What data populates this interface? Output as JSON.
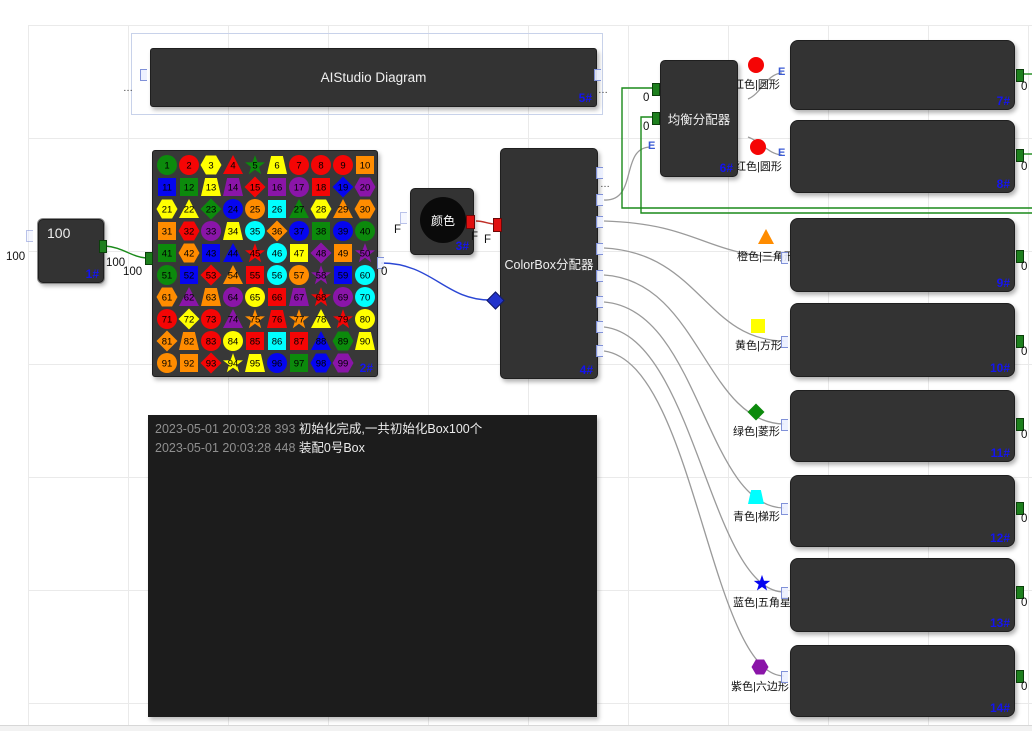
{
  "palette": {
    "red": "#f50505",
    "orange": "#ff8c00",
    "yellow": "#ffff00",
    "green": "#0c8a0c",
    "blue": "#0505f0",
    "cyan": "#00ffff",
    "purple": "#8a15a8"
  },
  "wire_colors": {
    "gray": "#9a9a9a",
    "green": "#1a8a1a",
    "blue": "#2a46d4",
    "red": "#c03028"
  },
  "node_colors": {
    "body": "#333333",
    "id_text": "#1414f0"
  },
  "nodes": {
    "title": {
      "id": "5#",
      "label": "AIStudio Diagram",
      "left_ellipsis": "…",
      "right_ellipsis": "…"
    },
    "count": {
      "id": "1#",
      "value": "100",
      "left_label": "100",
      "out_label": "100"
    },
    "box_grid": {
      "id": "2#",
      "in_label": "100",
      "out_label": "0",
      "cells": [
        "green circle",
        "red circle",
        "yellow hexagon",
        "red triangle",
        "green star",
        "yellow trapezoid",
        "red circle",
        "red circle",
        "red circle",
        "orange square",
        "blue square",
        "green square",
        "yellow trapezoid",
        "purple trapezoid",
        "red diamond",
        "purple square",
        "purple circle",
        "red square",
        "blue diamond",
        "purple hexagon",
        "yellow hexagon",
        "yellow triangle",
        "green diamond",
        "blue circle",
        "orange circle",
        "cyan square",
        "green triangle",
        "yellow hexagon",
        "orange triangle",
        "orange hexagon",
        "orange square",
        "red hexagon",
        "purple circle",
        "yellow trapezoid",
        "cyan circle",
        "orange diamond",
        "blue circle",
        "green square",
        "blue circle",
        "green circle",
        "green square",
        "orange hexagon",
        "blue square",
        "blue triangle",
        "red star",
        "cyan circle",
        "yellow square",
        "purple diamond",
        "orange square",
        "purple star",
        "green circle",
        "blue square",
        "red diamond",
        "orange triangle",
        "red square",
        "cyan circle",
        "orange circle",
        "purple star",
        "blue square",
        "cyan circle",
        "orange hexagon",
        "purple triangle",
        "orange trapezoid",
        "purple circle",
        "yellow circle",
        "red square",
        "purple trapezoid",
        "red star",
        "purple circle",
        "cyan circle",
        "red circle",
        "yellow diamond",
        "red circle",
        "purple triangle",
        "orange star",
        "red trapezoid",
        "orange star",
        "yellow triangle",
        "red star",
        "yellow circle",
        "orange diamond",
        "orange trapezoid",
        "red circle",
        "yellow circle",
        "red square",
        "cyan square",
        "red square",
        "blue triangle",
        "green hexagon",
        "yellow trapezoid",
        "orange circle",
        "orange square",
        "red diamond",
        "yellow star",
        "yellow trapezoid",
        "blue circle",
        "green square",
        "blue hexagon",
        "purple hexagon"
      ]
    },
    "color": {
      "id": "3#",
      "label": "颜色",
      "in_label": "F",
      "out_label": "F"
    },
    "colorbox": {
      "id": "4#",
      "label": "ColorBox分配器",
      "in_label": "F",
      "ellipsis": "…"
    },
    "balancer": {
      "id": "6#",
      "label": "均衡分配器",
      "in_labels": [
        "0",
        "0"
      ]
    },
    "outputs": [
      {
        "id": "7#",
        "icon_shape": "circle",
        "icon_color": "red",
        "wire_label": "红色|圆形",
        "out_label": "0"
      },
      {
        "id": "8#",
        "icon_shape": "circle",
        "icon_color": "red",
        "wire_label": "红色|圆形",
        "out_label": "0"
      },
      {
        "id": "9#",
        "icon_shape": "triangle",
        "icon_color": "orange",
        "wire_label": "橙色|三角形",
        "out_label": "0"
      },
      {
        "id": "10#",
        "icon_shape": "square",
        "icon_color": "yellow",
        "wire_label": "黄色|方形",
        "out_label": "0"
      },
      {
        "id": "11#",
        "icon_shape": "diamond",
        "icon_color": "green",
        "wire_label": "绿色|菱形",
        "out_label": "0"
      },
      {
        "id": "12#",
        "icon_shape": "trapezoid",
        "icon_color": "cyan",
        "wire_label": "青色|梯形",
        "out_label": "0"
      },
      {
        "id": "13#",
        "icon_shape": "star",
        "icon_color": "blue",
        "wire_label": "蓝色|五角星",
        "out_label": "0"
      },
      {
        "id": "14#",
        "icon_shape": "hexagon",
        "icon_color": "purple",
        "wire_label": "紫色|六边形",
        "out_label": "0"
      }
    ]
  },
  "log": {
    "entries": [
      {
        "time": "2023-05-01 20:03:28 393",
        "message": "初始化完成,一共初始化Box100个"
      },
      {
        "time": "2023-05-01 20:03:28 448",
        "message": "装配0号Box"
      }
    ]
  }
}
